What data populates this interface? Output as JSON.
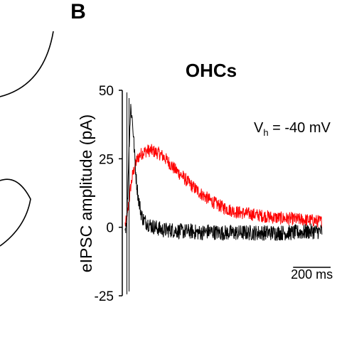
{
  "panel_label": "B",
  "chart_data": {
    "type": "line",
    "title": "OHCs",
    "ylabel": "eIPSC amplitude (pA)",
    "xlabel": "",
    "ylim": [
      -25,
      50
    ],
    "yticks": [
      50,
      25,
      0,
      -25
    ],
    "ytick_labels": [
      "50",
      "25",
      "0",
      "-25"
    ],
    "xlim_ms": [
      0,
      1100
    ],
    "grid": false,
    "legend": "none",
    "annotation": {
      "prefix": "V",
      "subscript": "h",
      "suffix": " = -40 mV"
    },
    "scalebar": {
      "value_ms": 200,
      "label": "200 ms"
    },
    "series": [
      {
        "color": "#000000",
        "x_ms": [
          0,
          10,
          20,
          30,
          40,
          50,
          60,
          70,
          80,
          90,
          100,
          120,
          140,
          160,
          180,
          200,
          250,
          300,
          350,
          400,
          450,
          500,
          600,
          700,
          800,
          900,
          1000,
          1050
        ],
        "values": [
          -1,
          4,
          28,
          44,
          38,
          27,
          17,
          11,
          7,
          4,
          2.5,
          1.5,
          0.5,
          0,
          -0.5,
          -1,
          -1,
          -1.5,
          -1.5,
          -2,
          -1.5,
          -2,
          -2,
          -2,
          -2,
          -2,
          -1.5,
          -1.5
        ],
        "noise": 1.8
      },
      {
        "color": "#ff0000",
        "x_ms": [
          0,
          10,
          20,
          30,
          40,
          50,
          60,
          70,
          80,
          100,
          120,
          140,
          160,
          180,
          200,
          230,
          260,
          300,
          350,
          400,
          450,
          500,
          550,
          600,
          650,
          700,
          800,
          900,
          1000,
          1050
        ],
        "values": [
          1,
          3,
          9,
          15,
          19,
          22,
          24,
          25.5,
          26.5,
          27.5,
          28,
          28,
          27.5,
          27,
          26,
          24,
          21.5,
          19,
          15.5,
          12.5,
          10,
          8,
          6.5,
          5.5,
          5,
          4.5,
          3.5,
          3,
          2.5,
          2
        ],
        "noise": 1.5
      }
    ]
  }
}
